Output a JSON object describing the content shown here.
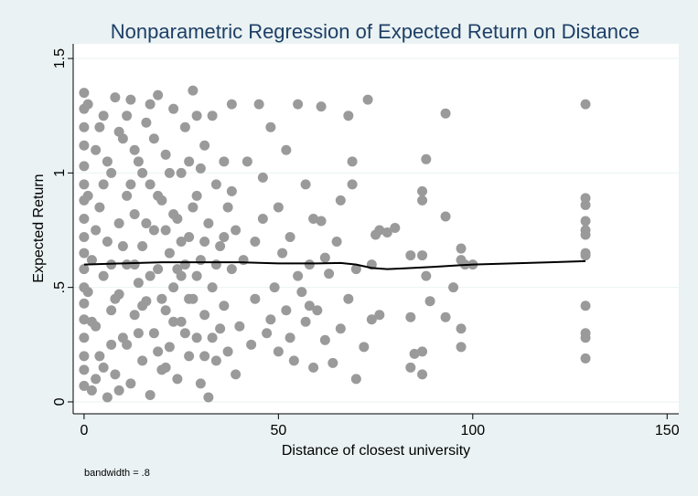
{
  "chart_data": {
    "type": "scatter",
    "title": "Nonparametric Regression of Expected Return on Distance",
    "x_label": "Distance of closest university",
    "y_label": "Expected Return",
    "note": "bandwidth = .8",
    "xlim": [
      -2.8,
      153
    ],
    "ylim": [
      -0.052,
      1.564
    ],
    "xticks": [
      0,
      50,
      100,
      150
    ],
    "yticks": [
      0,
      {
        "value": 0.5,
        "label": ".5"
      },
      1,
      1.5
    ],
    "grid": true,
    "series": [
      {
        "type": "scatter",
        "color": "#9a9a9a",
        "x": [
          129,
          129,
          129,
          129,
          129,
          129,
          129,
          129,
          129,
          129,
          129,
          129,
          93,
          93,
          93,
          95,
          97,
          97,
          98,
          100,
          97,
          97,
          88,
          87,
          87,
          87,
          88,
          89,
          87,
          87,
          84,
          84,
          84,
          85,
          80,
          78,
          76,
          73,
          75,
          74,
          76,
          74,
          72,
          70,
          68,
          69,
          69,
          66,
          65,
          63,
          68,
          66,
          64,
          70,
          62,
          61,
          61,
          62,
          60,
          45,
          48,
          52,
          55,
          57,
          50,
          46,
          53,
          58,
          55,
          49,
          44,
          52,
          57,
          47,
          50,
          54,
          59,
          43,
          41,
          42,
          46,
          56,
          59,
          51,
          44,
          48,
          53,
          58,
          40,
          0,
          0,
          0,
          0,
          0,
          0,
          0,
          0,
          0,
          0,
          0,
          0,
          0,
          0,
          0,
          0,
          0,
          0,
          1,
          2,
          2,
          3,
          3,
          4,
          4,
          5,
          5,
          6,
          6,
          7,
          7,
          8,
          8,
          9,
          9,
          10,
          10,
          11,
          11,
          12,
          12,
          13,
          13,
          14,
          14,
          15,
          15,
          16,
          16,
          17,
          17,
          18,
          18,
          19,
          19,
          20,
          20,
          21,
          21,
          22,
          22,
          23,
          23,
          24,
          24,
          25,
          25,
          26,
          26,
          27,
          27,
          28,
          28,
          29,
          29,
          30,
          30,
          31,
          31,
          32,
          32,
          33,
          33,
          34,
          34,
          35,
          35,
          36,
          36,
          37,
          37,
          38,
          38,
          39,
          39,
          1,
          2,
          3,
          4,
          5,
          6,
          7,
          8,
          9,
          10,
          11,
          12,
          13,
          14,
          15,
          16,
          17,
          18,
          19,
          20,
          21,
          22,
          23,
          24,
          25,
          26,
          27,
          28,
          29,
          30,
          31,
          33,
          34,
          36,
          38,
          1,
          3,
          5,
          7,
          9,
          11,
          13,
          15,
          17,
          19,
          21,
          23,
          25,
          27,
          29,
          31
        ],
        "values": [
          1.3,
          0.89,
          0.86,
          0.79,
          0.75,
          0.73,
          0.65,
          0.64,
          0.42,
          0.3,
          0.28,
          0.19,
          1.26,
          0.81,
          0.37,
          0.5,
          0.67,
          0.62,
          0.6,
          0.6,
          0.32,
          0.24,
          1.06,
          0.92,
          0.88,
          0.64,
          0.55,
          0.44,
          0.22,
          0.12,
          0.64,
          0.37,
          0.15,
          0.21,
          0.76,
          0.74,
          0.75,
          1.32,
          0.73,
          0.6,
          0.38,
          0.36,
          0.24,
          0.58,
          1.25,
          1.05,
          0.95,
          0.88,
          0.7,
          0.56,
          0.45,
          0.32,
          0.17,
          0.1,
          0.27,
          1.29,
          0.79,
          0.63,
          0.4,
          1.3,
          1.2,
          1.1,
          1.3,
          0.95,
          0.85,
          0.8,
          0.72,
          0.6,
          0.55,
          0.5,
          0.45,
          0.4,
          0.35,
          0.3,
          0.22,
          0.18,
          0.15,
          0.25,
          0.62,
          1.05,
          0.98,
          0.48,
          0.8,
          0.65,
          0.7,
          0.36,
          0.28,
          0.42,
          0.33,
          1.35,
          1.28,
          1.2,
          1.12,
          1.03,
          0.95,
          0.88,
          0.8,
          0.72,
          0.65,
          0.58,
          0.5,
          0.43,
          0.36,
          0.28,
          0.2,
          0.14,
          0.07,
          1.3,
          0.05,
          0.62,
          1.1,
          0.33,
          0.85,
          0.2,
          1.25,
          0.55,
          0.02,
          0.7,
          1.0,
          0.4,
          1.33,
          0.12,
          0.78,
          0.47,
          1.15,
          0.28,
          0.9,
          0.6,
          1.32,
          0.08,
          0.38,
          0.82,
          1.05,
          0.52,
          0.18,
          0.68,
          1.22,
          0.44,
          0.95,
          0.03,
          0.75,
          0.3,
          1.34,
          0.58,
          0.14,
          0.88,
          1.08,
          0.4,
          0.65,
          0.24,
          1.28,
          0.5,
          0.1,
          0.8,
          1.0,
          0.35,
          0.6,
          1.2,
          0.2,
          0.72,
          1.36,
          0.45,
          0.9,
          0.28,
          0.08,
          0.62,
          1.12,
          0.38,
          0.02,
          0.78,
          1.25,
          0.5,
          0.18,
          0.95,
          0.68,
          0.32,
          1.05,
          0.42,
          0.85,
          0.22,
          1.3,
          0.58,
          0.12,
          0.75,
          0.9,
          0.35,
          0.75,
          1.2,
          0.15,
          1.05,
          0.6,
          0.45,
          1.18,
          0.68,
          0.25,
          0.95,
          1.1,
          0.3,
          1.0,
          0.78,
          0.55,
          1.15,
          0.22,
          0.45,
          0.75,
          1.0,
          0.35,
          0.58,
          0.7,
          0.3,
          1.05,
          0.85,
          0.55,
          1.02,
          0.7,
          0.28,
          0.6,
          0.72,
          0.92,
          0.48,
          0.1,
          0.95,
          0.25,
          0.05,
          1.25,
          0.6,
          0.42,
          1.3,
          0.9,
          0.15,
          0.82,
          0.55,
          0.45,
          1.25,
          0.2
        ]
      },
      {
        "type": "line",
        "color": "#000000",
        "x": [
          0,
          10,
          20,
          30,
          40,
          50,
          60,
          66,
          70,
          74,
          78,
          82,
          90,
          100,
          110,
          120,
          129
        ],
        "values": [
          0.6,
          0.605,
          0.61,
          0.61,
          0.61,
          0.605,
          0.605,
          0.607,
          0.6,
          0.585,
          0.58,
          0.583,
          0.59,
          0.6,
          0.605,
          0.61,
          0.615
        ]
      }
    ]
  }
}
